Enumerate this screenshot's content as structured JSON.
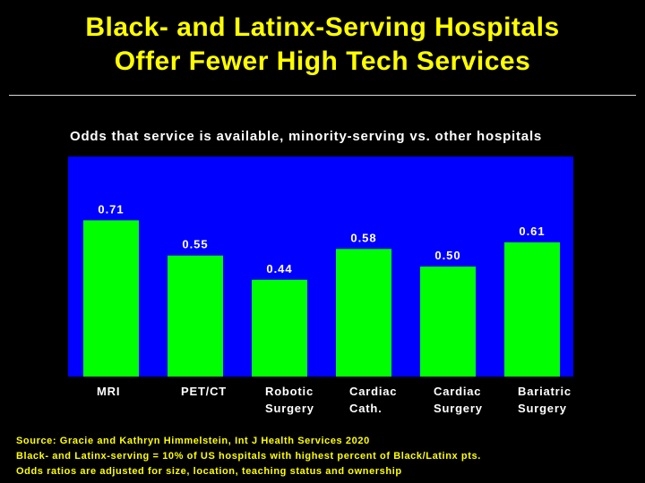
{
  "slide": {
    "title_line1": "Black- and Latinx-Serving Hospitals",
    "title_line2": "Offer Fewer High Tech Services"
  },
  "chart_data": {
    "type": "bar",
    "title": "Odds that service is available, minority-serving vs. other hospitals",
    "categories": [
      "MRI",
      "PET/CT",
      "Robotic\nSurgery",
      "Cardiac\nCath.",
      "Cardiac\nSurgery",
      "Bariatric\nSurgery"
    ],
    "values": [
      0.71,
      0.55,
      0.44,
      0.58,
      0.5,
      0.61
    ],
    "value_labels": [
      "0.71",
      "0.55",
      "0.44",
      "0.58",
      "0.50",
      "0.61"
    ],
    "ylim": [
      0,
      1.0
    ],
    "xlabel": "",
    "ylabel": "",
    "colors": {
      "bar": "#00ff00",
      "plot_bg": "#0000ff",
      "label": "#ffffff"
    }
  },
  "footnotes": [
    "Source: Gracie and Kathryn Himmelstein, Int J Health Services 2020",
    "Black- and Latinx-serving = 10% of US hospitals with highest percent of Black/Latinx pts.",
    "Odds ratios are adjusted for size, location, teaching status and ownership"
  ]
}
